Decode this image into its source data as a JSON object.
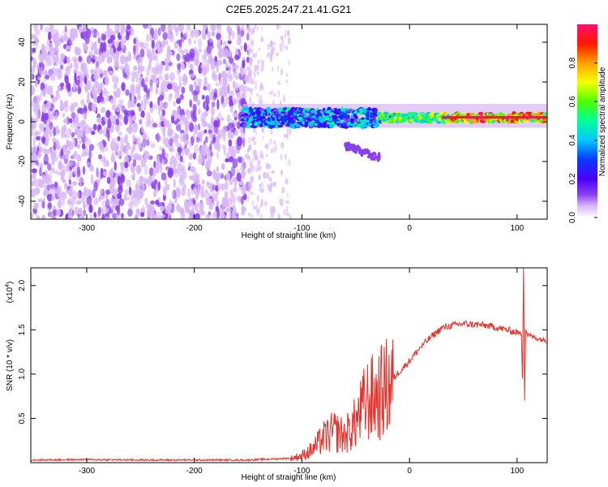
{
  "title": "C2E5.2025.247.21.41.G21",
  "colors": {
    "snr_line": "#e8302a",
    "background": "#ffffff",
    "axis": "#000000",
    "colormap": [
      "#ffffff",
      "#d8b7f7",
      "#8a3ff0",
      "#4a00ff",
      "#0a38ff",
      "#00c8ff",
      "#00ff9a",
      "#4cff00",
      "#f4ff00",
      "#ffa000",
      "#ff1800",
      "#ff0d6e"
    ]
  },
  "chart_data": [
    {
      "type": "heatmap",
      "xlabel": "Height of straight line (km)",
      "ylabel": "Frequency (Hz)",
      "xlim": [
        -352,
        128
      ],
      "ylim": [
        -49,
        49
      ],
      "xticks": [
        -300,
        -200,
        -100,
        0,
        100
      ],
      "yticks": [
        -40,
        -20,
        0,
        20,
        40
      ],
      "xtick_labels": [
        "-300",
        "-200",
        "-100",
        "0",
        "100"
      ],
      "ytick_labels": [
        "-40",
        "-20",
        "0",
        "20",
        "40"
      ],
      "colorbar": {
        "label": "Normalized spectral amplitude",
        "range": [
          0,
          1
        ],
        "ticks": [
          0.0,
          0.2,
          0.4,
          0.6,
          0.8
        ],
        "tick_labels": [
          "0.0",
          "0.2",
          "0.4",
          "0.6",
          "0.8"
        ]
      },
      "regions": [
        {
          "name": "broadband noise",
          "x": [
            -352,
            -150
          ],
          "freq": [
            -49,
            49
          ],
          "amplitude": 0.12
        },
        {
          "name": "fading noise",
          "x": [
            -150,
            -110
          ],
          "freq": [
            -49,
            49
          ],
          "amplitude": 0.05
        },
        {
          "name": "signal line",
          "x": [
            -155,
            128
          ],
          "freq_center": 2,
          "amplitude_range": [
            0.2,
            1.0
          ]
        },
        {
          "name": "spur",
          "x": [
            -60,
            -28
          ],
          "freq": [
            -12,
            -18
          ],
          "amplitude": 0.18
        }
      ]
    },
    {
      "type": "line",
      "xlabel": "Height of straight line (km)",
      "ylabel": "SNR (10 * v/v)",
      "scale_label": "(x10",
      "scale_exp": "4",
      "xlim": [
        -352,
        128
      ],
      "ylim": [
        0,
        2.2
      ],
      "xticks": [
        -300,
        -200,
        -100,
        0,
        100
      ],
      "yticks": [
        0.5,
        1.0,
        1.5,
        2.0
      ],
      "xtick_labels": [
        "-300",
        "-200",
        "-100",
        "0",
        "100"
      ],
      "ytick_labels": [
        "0.5",
        "1.0",
        "1.5",
        "2.0"
      ],
      "series": [
        {
          "name": "SNR",
          "x": [
            -352,
            -300,
            -250,
            -200,
            -150,
            -110,
            -100,
            -90,
            -80,
            -70,
            -60,
            -50,
            -40,
            -30,
            -20,
            -15,
            -10,
            0,
            10,
            20,
            30,
            40,
            50,
            60,
            70,
            80,
            90,
            100,
            104,
            105,
            106,
            107,
            108,
            110,
            115,
            120,
            128
          ],
          "y": [
            0.03,
            0.035,
            0.03,
            0.03,
            0.03,
            0.05,
            0.08,
            0.15,
            0.28,
            0.35,
            0.3,
            0.45,
            0.7,
            0.75,
            0.85,
            0.95,
            1.02,
            1.15,
            1.3,
            1.42,
            1.52,
            1.55,
            1.57,
            1.56,
            1.55,
            1.53,
            1.5,
            1.47,
            1.45,
            0.95,
            2.2,
            0.7,
            1.5,
            1.44,
            1.42,
            1.4,
            1.38
          ]
        }
      ]
    }
  ]
}
